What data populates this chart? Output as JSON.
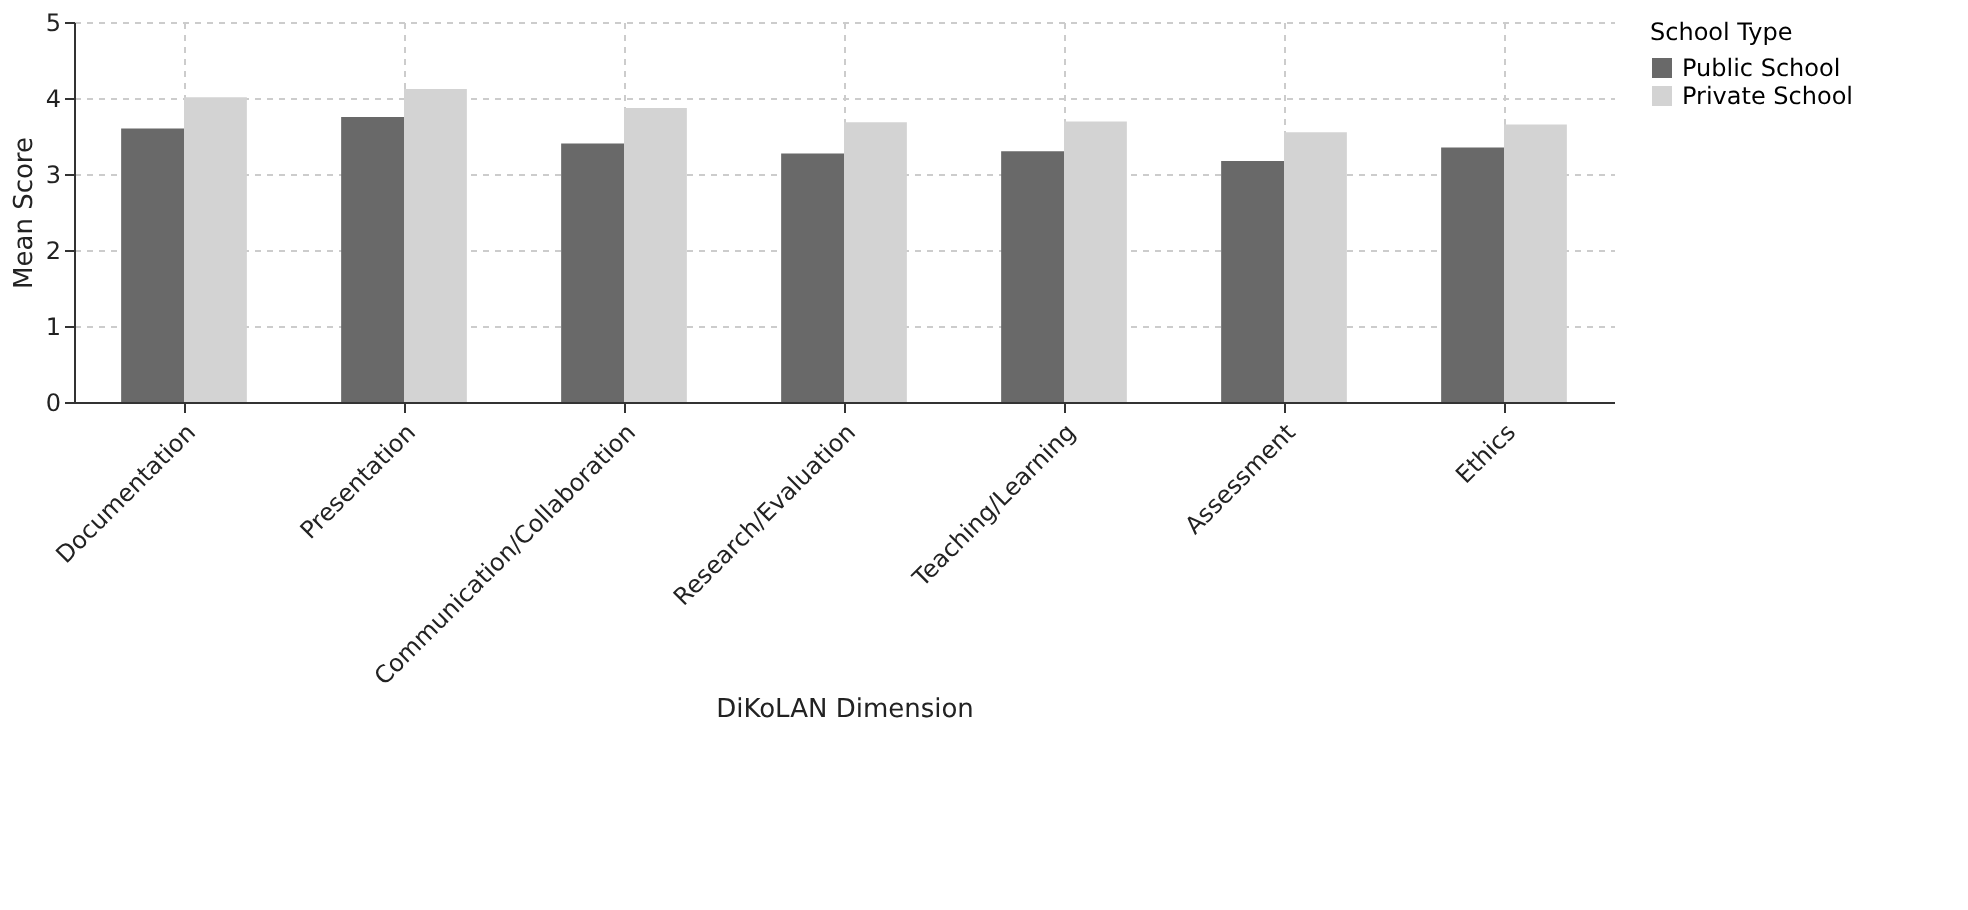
{
  "chart_data": {
    "type": "bar",
    "xlabel": "DiKoLAN Dimension",
    "ylabel": "Mean Score",
    "legend_title": "School Type",
    "categories": [
      "Documentation",
      "Presentation",
      "Communication/Collaboration",
      "Research/Evaluation",
      "Teaching/Learning",
      "Assessment",
      "Ethics"
    ],
    "series": [
      {
        "name": "Public School",
        "color": "#696969",
        "values": [
          3.6,
          3.75,
          3.4,
          3.27,
          3.3,
          3.17,
          3.35
        ]
      },
      {
        "name": "Private School",
        "color": "#d3d3d3",
        "values": [
          4.01,
          4.12,
          3.87,
          3.68,
          3.69,
          3.55,
          3.65
        ]
      }
    ],
    "ylim": [
      0,
      5
    ],
    "yticks": [
      0,
      1,
      2,
      3,
      4,
      5
    ],
    "grid": true,
    "legend": "right"
  }
}
